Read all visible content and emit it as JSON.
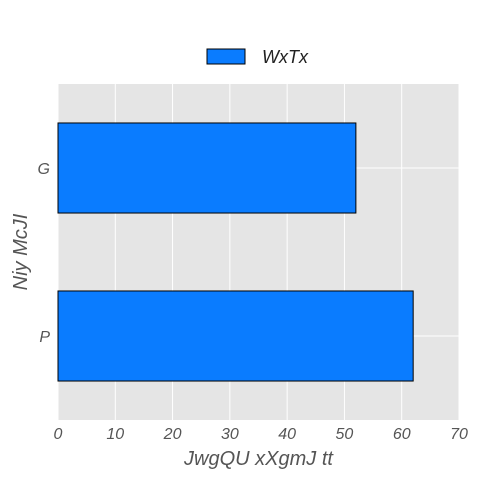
{
  "chart_data": {
    "type": "bar",
    "orientation": "horizontal",
    "categories": [
      "P",
      "G"
    ],
    "series": [
      {
        "name": "WxTx",
        "values": [
          62,
          52
        ],
        "color": "#0a7cff"
      }
    ],
    "xlabel": "JwgQU xXgmJ tt",
    "ylabel": "Niy McJI",
    "xlim": [
      0,
      70
    ],
    "xticks": [
      "0",
      "10",
      "20",
      "30",
      "40",
      "50",
      "60",
      "70"
    ],
    "grid": true,
    "legend_position": "top-center",
    "plot_background": "#e5e5e5",
    "grid_color": "#ffffff",
    "bar_edge_color": "#000000"
  }
}
